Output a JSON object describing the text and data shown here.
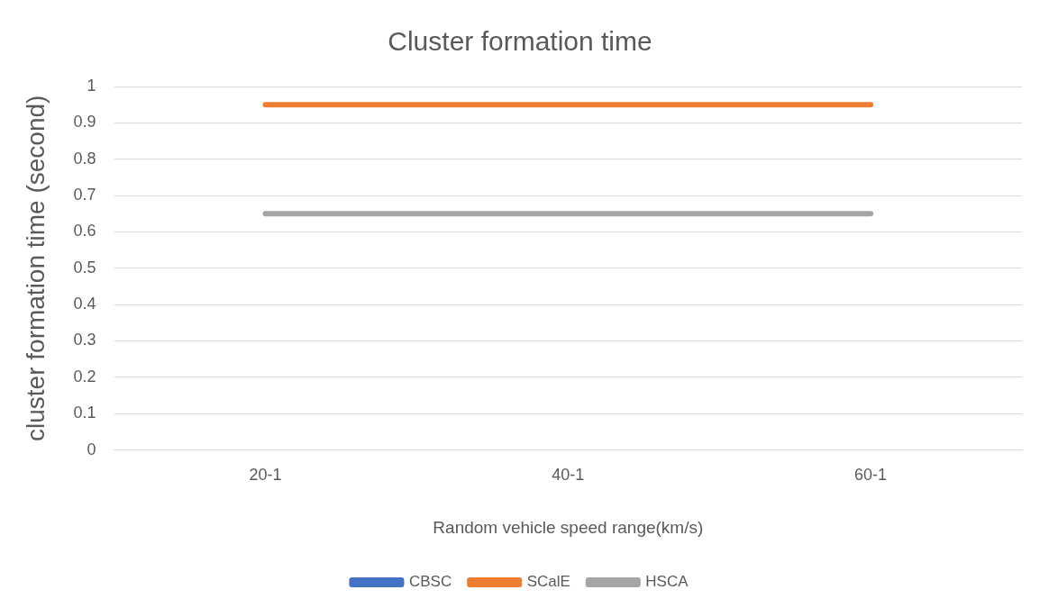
{
  "chart_data": {
    "type": "line",
    "title": "Cluster formation time",
    "xlabel": "Random vehicle speed range(km/s)",
    "ylabel": "cluster formation time (second)",
    "categories": [
      "20-1",
      "40-1",
      "60-1"
    ],
    "series": [
      {
        "name": "CBSC",
        "color": "#4472c4",
        "values": [
          null,
          null,
          null
        ]
      },
      {
        "name": "SCalE",
        "color": "#ed7d31",
        "values": [
          0.95,
          0.95,
          0.95
        ]
      },
      {
        "name": "HSCA",
        "color": "#a5a5a5",
        "values": [
          0.65,
          0.65,
          0.65
        ]
      }
    ],
    "ylim": [
      0,
      1
    ],
    "yticks": [
      0,
      0.1,
      0.2,
      0.3,
      0.4,
      0.5,
      0.6,
      0.7,
      0.8,
      0.9,
      1
    ],
    "grid": "y",
    "legend": "bottom",
    "marker": "none",
    "line_style": "solid"
  }
}
